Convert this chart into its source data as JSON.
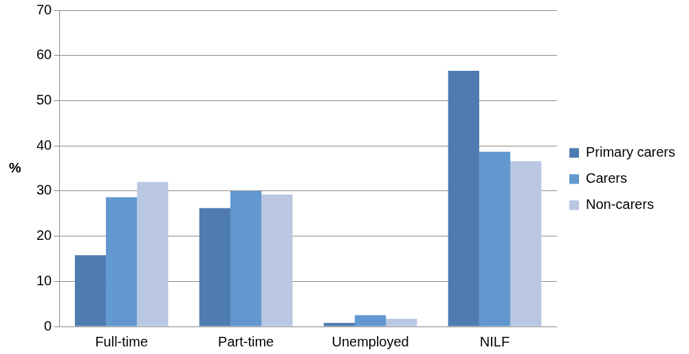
{
  "chart_data": {
    "type": "bar",
    "ylabel": "%",
    "categories": [
      "Full-time",
      "Part-time",
      "Unemployed",
      "NILF"
    ],
    "series": [
      {
        "name": "Primary carers",
        "color": "#4f7cb0",
        "values": [
          15.8,
          26.2,
          0.8,
          56.6
        ]
      },
      {
        "name": "Carers",
        "color": "#6198cf",
        "values": [
          28.6,
          30.0,
          2.5,
          38.7
        ]
      },
      {
        "name": "Non-carers",
        "color": "#b9c7e2",
        "values": [
          32.0,
          29.2,
          1.7,
          36.6
        ]
      }
    ],
    "ylim": [
      0,
      70
    ],
    "yticks": [
      0,
      10,
      20,
      30,
      40,
      50,
      60,
      70
    ],
    "grid": "y",
    "legend": "right"
  }
}
